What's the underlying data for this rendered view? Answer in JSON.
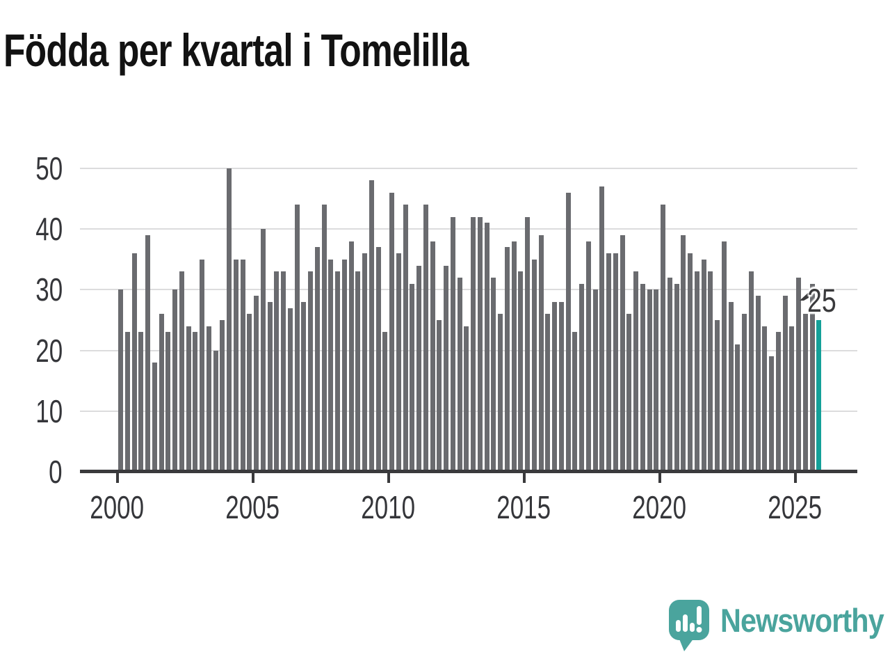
{
  "title": "Födda per kvartal i Tomelilla",
  "chart_data": {
    "type": "bar",
    "title": "Födda per kvartal i Tomelilla",
    "series_start": "2000 Q1",
    "series_end": "2025 Q4",
    "frequency": "quarterly",
    "values": [
      30,
      23,
      36,
      23,
      39,
      18,
      26,
      23,
      30,
      33,
      24,
      23,
      35,
      24,
      20,
      25,
      50,
      35,
      35,
      26,
      29,
      40,
      28,
      33,
      33,
      27,
      44,
      28,
      33,
      37,
      44,
      35,
      33,
      35,
      38,
      33,
      36,
      48,
      37,
      23,
      46,
      36,
      44,
      31,
      34,
      44,
      38,
      25,
      34,
      42,
      32,
      24,
      42,
      42,
      41,
      32,
      26,
      37,
      38,
      33,
      42,
      35,
      39,
      26,
      28,
      28,
      46,
      23,
      31,
      38,
      30,
      47,
      36,
      36,
      39,
      26,
      33,
      31,
      30,
      30,
      44,
      32,
      31,
      39,
      36,
      33,
      35,
      33,
      25,
      38,
      28,
      21,
      26,
      33,
      29,
      24,
      19,
      23,
      29,
      24,
      32,
      26,
      31,
      25
    ],
    "highlight_last_bar": {
      "period": "2025 Q4",
      "value": 25,
      "color": "#14a099"
    },
    "annotation": {
      "label": "25"
    },
    "x_tick_labels": [
      "2000",
      "2005",
      "2010",
      "2015",
      "2020",
      "2025"
    ],
    "y_tick_labels": [
      "0",
      "10",
      "20",
      "30",
      "40",
      "50"
    ],
    "ylim": [
      0,
      52
    ],
    "grid": "horizontal",
    "legend": "none",
    "bar_color": "#6a6b6f"
  },
  "branding": {
    "logo_text": "Newsworthy",
    "logo_color": "#4aa49d"
  },
  "colors": {
    "background": "#ffffff",
    "bar": "#6a6b6f",
    "highlight": "#14a099",
    "gridline": "#dcdcdd",
    "axis": "#3a3a3c",
    "tick_text": "#35363a",
    "title_text": "#121212"
  }
}
